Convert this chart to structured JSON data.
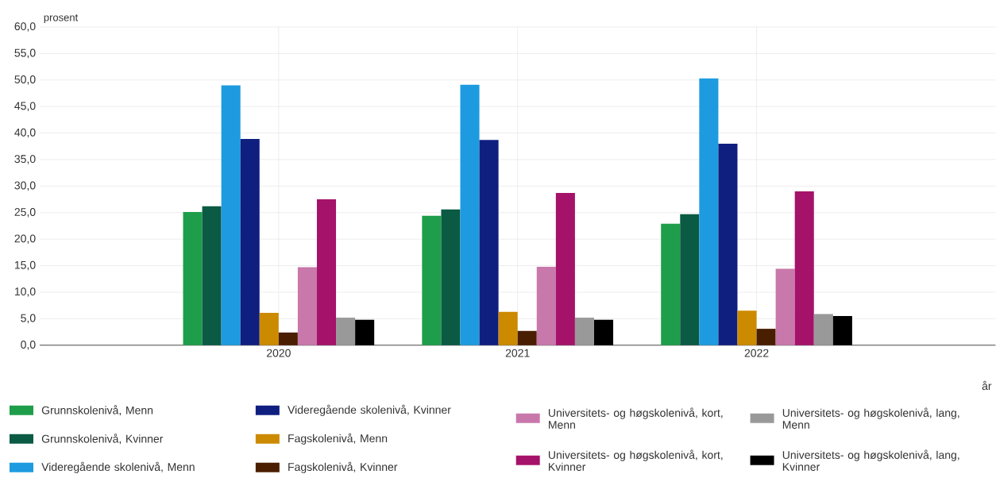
{
  "chart_data": {
    "type": "bar",
    "ylabel": "prosent",
    "xlabel": "år",
    "categories": [
      "2020",
      "2021",
      "2022"
    ],
    "series": [
      {
        "name": "Grunnskolenivå, Menn",
        "color": "#1e9e4a",
        "values": [
          25.1,
          24.4,
          22.9
        ]
      },
      {
        "name": "Grunnskolenivå, Kvinner",
        "color": "#0b5a44",
        "values": [
          26.2,
          25.6,
          24.7
        ]
      },
      {
        "name": "Videregående skolenivå, Menn",
        "color": "#1e9be0",
        "values": [
          49.0,
          49.1,
          50.3
        ]
      },
      {
        "name": "Videregående skolenivå, Kvinner",
        "color": "#0f1f80",
        "values": [
          38.9,
          38.7,
          38.0
        ]
      },
      {
        "name": "Fagskolenivå, Menn",
        "color": "#cc8a00",
        "values": [
          6.1,
          6.3,
          6.5
        ]
      },
      {
        "name": "Fagskolenivå, Kvinner",
        "color": "#4a1e00",
        "values": [
          2.4,
          2.7,
          3.1
        ]
      },
      {
        "name": "Universitets- og høgskolenivå, kort, Menn",
        "color": "#c878aa",
        "values": [
          14.7,
          14.8,
          14.4
        ]
      },
      {
        "name": "Universitets- og høgskolenivå, kort, Kvinner",
        "color": "#a5126a",
        "values": [
          27.5,
          28.7,
          29.0
        ]
      },
      {
        "name": "Universitets- og høgskolenivå, lang, Menn",
        "color": "#999999",
        "values": [
          5.2,
          5.2,
          5.9
        ]
      },
      {
        "name": "Universitets- og høgskolenivå, lang, Kvinner",
        "color": "#000000",
        "values": [
          4.8,
          4.8,
          5.5
        ]
      }
    ],
    "ylim": [
      0,
      60
    ],
    "yticks": [
      {
        "value": 0,
        "label": "0,0"
      },
      {
        "value": 5,
        "label": "5,0"
      },
      {
        "value": 10,
        "label": "10,0"
      },
      {
        "value": 15,
        "label": "15,0"
      },
      {
        "value": 20,
        "label": "20,0"
      },
      {
        "value": 25,
        "label": "25,0"
      },
      {
        "value": 30,
        "label": "30,0"
      },
      {
        "value": 35,
        "label": "35,0"
      },
      {
        "value": 40,
        "label": "40,0"
      },
      {
        "value": 45,
        "label": "45,0"
      },
      {
        "value": 50,
        "label": "50,0"
      },
      {
        "value": 55,
        "label": "55,0"
      },
      {
        "value": 60,
        "label": "60,0"
      }
    ],
    "grid": true,
    "legend": "bottom"
  }
}
